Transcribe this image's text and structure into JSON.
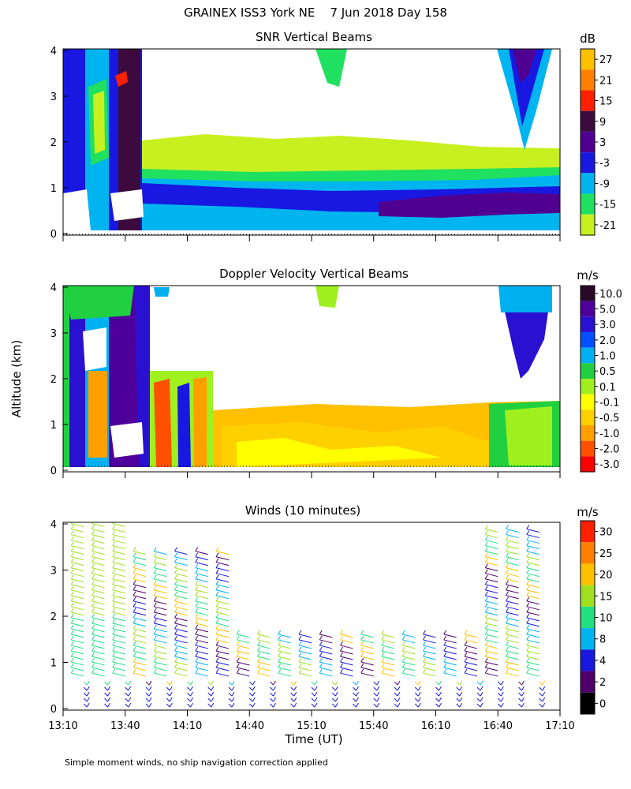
{
  "figure": {
    "title": "GRAINEX ISS3 York NE    7 Jun 2018 Day 158",
    "ylabel": "Altitude (km)",
    "xlabel": "Time (UT)",
    "footnote": "Simple moment winds, no ship navigation correction applied"
  },
  "chart_data": [
    {
      "type": "heatmap",
      "title": "SNR Vertical Beams",
      "units": "dB",
      "x_ticks": [
        "13:10",
        "13:40",
        "14:10",
        "14:40",
        "15:10",
        "15:40",
        "16:10",
        "16:40",
        "17:10"
      ],
      "x_range": [
        "13:10",
        "17:10"
      ],
      "y_ticks": [
        0,
        1,
        2,
        3,
        4
      ],
      "y_range": [
        0,
        4
      ],
      "levels": [
        {
          "label": "27",
          "color": "#ffc000"
        },
        {
          "label": "21",
          "color": "#ff8000"
        },
        {
          "label": "15",
          "color": "#ff2000"
        },
        {
          "label": "9",
          "color": "#3c0a3c"
        },
        {
          "label": "3",
          "color": "#500090"
        },
        {
          "label": "-3",
          "color": "#1818e0"
        },
        {
          "label": "-9",
          "color": "#00b4f0"
        },
        {
          "label": "-15",
          "color": "#20e060"
        },
        {
          "label": "-21",
          "color": "#c8f020"
        }
      ]
    },
    {
      "type": "heatmap",
      "title": "Doppler Velocity Vertical Beams",
      "units": "m/s",
      "x_ticks": [
        "13:10",
        "13:40",
        "14:10",
        "14:40",
        "15:10",
        "15:40",
        "16:10",
        "16:40",
        "17:10"
      ],
      "x_range": [
        "13:10",
        "17:10"
      ],
      "y_ticks": [
        0,
        1,
        2,
        3,
        4
      ],
      "y_range": [
        0,
        4
      ],
      "levels": [
        {
          "label": "10.0",
          "color": "#280a28"
        },
        {
          "label": "5.0",
          "color": "#50009a"
        },
        {
          "label": "3.0",
          "color": "#2a10d0"
        },
        {
          "label": "2.0",
          "color": "#0050ff"
        },
        {
          "label": "1.0",
          "color": "#00b0f0"
        },
        {
          "label": "0.5",
          "color": "#20d040"
        },
        {
          "label": "0.1",
          "color": "#a0f020"
        },
        {
          "label": "-0.1",
          "color": "#ffff00"
        },
        {
          "label": "-0.5",
          "color": "#ffd000"
        },
        {
          "label": "-1.0",
          "color": "#ffa000"
        },
        {
          "label": "-2.0",
          "color": "#ff5000"
        },
        {
          "label": "-3.0",
          "color": "#ff0000"
        }
      ]
    },
    {
      "type": "wind_barbs",
      "title": "Winds (10 minutes)",
      "units": "m/s",
      "x_ticks": [
        "13:10",
        "13:40",
        "14:10",
        "14:40",
        "15:10",
        "15:40",
        "16:10",
        "16:40",
        "17:10"
      ],
      "x_range": [
        "13:10",
        "17:10"
      ],
      "y_ticks": [
        0,
        1,
        2,
        3,
        4
      ],
      "y_range": [
        0,
        4
      ],
      "levels": [
        {
          "label": "30",
          "color": "#ff2000"
        },
        {
          "label": "25",
          "color": "#ff8000"
        },
        {
          "label": "20",
          "color": "#ffc000"
        },
        {
          "label": "15",
          "color": "#a0e020"
        },
        {
          "label": "10",
          "color": "#20e080"
        },
        {
          "label": "8",
          "color": "#00b4f0"
        },
        {
          "label": "4",
          "color": "#1818e0"
        },
        {
          "label": "2",
          "color": "#50006a"
        },
        {
          "label": "0",
          "color": "#000000"
        }
      ],
      "profile_times": [
        "13:20",
        "13:30",
        "13:40",
        "13:50",
        "14:00",
        "14:10",
        "14:20",
        "14:30",
        "14:40",
        "14:50",
        "15:00",
        "15:10",
        "15:20",
        "15:30",
        "15:40",
        "15:50",
        "16:00",
        "16:10",
        "16:20",
        "16:30",
        "16:40",
        "16:50",
        "17:00"
      ]
    }
  ]
}
